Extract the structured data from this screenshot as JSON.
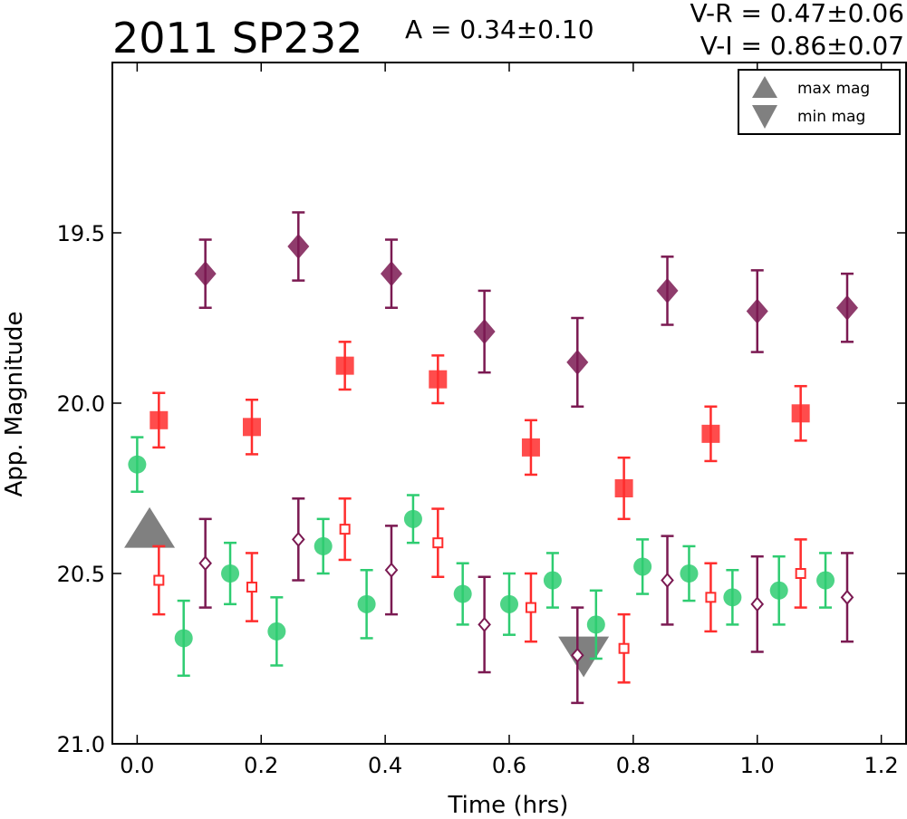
{
  "header": {
    "title": "2011 SP232",
    "amplitude": "A  = 0.34±0.10",
    "color_vr": "V-R = 0.47±0.06",
    "color_vi": "V-I  = 0.86±0.07"
  },
  "chart_data": {
    "type": "scatter",
    "xlabel": "Time (hrs)",
    "ylabel": "App. Magnitude",
    "xlim": [
      -0.04,
      1.24
    ],
    "ylim": [
      21.0,
      19.0
    ],
    "y_inverted": true,
    "x_ticks": [
      "0.0",
      "0.2",
      "0.4",
      "0.6",
      "0.8",
      "1.0",
      "1.2"
    ],
    "y_ticks": [
      "19.5",
      "20.0",
      "20.5",
      "21.0"
    ],
    "x_tick_values": [
      0.0,
      0.2,
      0.4,
      0.6,
      0.8,
      1.0,
      1.2
    ],
    "y_tick_values": [
      19.5,
      20.0,
      20.5,
      21.0
    ],
    "legend_position": "top-right",
    "legend": [
      {
        "label": "max mag",
        "marker": "triangle-up",
        "color": "#808080"
      },
      {
        "label": "min mag",
        "marker": "triangle-down",
        "color": "#808080"
      }
    ],
    "markers": [
      {
        "label": "max mag",
        "x": 0.02,
        "y": 20.38,
        "color": "#808080",
        "shape": "triangle-up"
      },
      {
        "label": "min mag",
        "x": 0.72,
        "y": 20.73,
        "color": "#808080",
        "shape": "triangle-down"
      }
    ],
    "series": [
      {
        "color": "#2ecc71",
        "marker": "circle",
        "filled": true,
        "points": [
          {
            "x": 0.0,
            "y": 20.18,
            "err": 0.08
          },
          {
            "x": 0.075,
            "y": 20.69,
            "err": 0.11
          },
          {
            "x": 0.15,
            "y": 20.5,
            "err": 0.09
          },
          {
            "x": 0.225,
            "y": 20.67,
            "err": 0.1
          },
          {
            "x": 0.3,
            "y": 20.42,
            "err": 0.08
          },
          {
            "x": 0.37,
            "y": 20.59,
            "err": 0.1
          },
          {
            "x": 0.445,
            "y": 20.34,
            "err": 0.07
          },
          {
            "x": 0.525,
            "y": 20.56,
            "err": 0.09
          },
          {
            "x": 0.6,
            "y": 20.59,
            "err": 0.09
          },
          {
            "x": 0.67,
            "y": 20.52,
            "err": 0.08
          },
          {
            "x": 0.74,
            "y": 20.65,
            "err": 0.1
          },
          {
            "x": 0.815,
            "y": 20.48,
            "err": 0.08
          },
          {
            "x": 0.89,
            "y": 20.5,
            "err": 0.08
          },
          {
            "x": 0.96,
            "y": 20.57,
            "err": 0.08
          },
          {
            "x": 1.035,
            "y": 20.55,
            "err": 0.1
          },
          {
            "x": 1.11,
            "y": 20.52,
            "err": 0.08
          }
        ]
      },
      {
        "color": "#ff2d2d",
        "marker": "square",
        "filled": true,
        "points": [
          {
            "x": 0.035,
            "y": 20.05,
            "err": 0.08
          },
          {
            "x": 0.185,
            "y": 20.07,
            "err": 0.08
          },
          {
            "x": 0.335,
            "y": 19.89,
            "err": 0.07
          },
          {
            "x": 0.485,
            "y": 19.93,
            "err": 0.07
          },
          {
            "x": 0.635,
            "y": 20.13,
            "err": 0.08
          },
          {
            "x": 0.785,
            "y": 20.25,
            "err": 0.09
          },
          {
            "x": 0.925,
            "y": 20.09,
            "err": 0.08
          },
          {
            "x": 1.07,
            "y": 20.03,
            "err": 0.08
          }
        ]
      },
      {
        "color": "#ff2d2d",
        "marker": "square",
        "filled": false,
        "points": [
          {
            "x": 0.035,
            "y": 20.52,
            "err": 0.1
          },
          {
            "x": 0.185,
            "y": 20.54,
            "err": 0.1
          },
          {
            "x": 0.335,
            "y": 20.37,
            "err": 0.09
          },
          {
            "x": 0.485,
            "y": 20.41,
            "err": 0.1
          },
          {
            "x": 0.635,
            "y": 20.6,
            "err": 0.1
          },
          {
            "x": 0.785,
            "y": 20.72,
            "err": 0.1
          },
          {
            "x": 0.925,
            "y": 20.57,
            "err": 0.1
          },
          {
            "x": 1.07,
            "y": 20.5,
            "err": 0.1
          }
        ]
      },
      {
        "color": "#7b1a52",
        "marker": "diamond",
        "filled": true,
        "points": [
          {
            "x": 0.11,
            "y": 19.62,
            "err": 0.1
          },
          {
            "x": 0.26,
            "y": 19.54,
            "err": 0.1
          },
          {
            "x": 0.41,
            "y": 19.62,
            "err": 0.1
          },
          {
            "x": 0.56,
            "y": 19.79,
            "err": 0.12
          },
          {
            "x": 0.71,
            "y": 19.88,
            "err": 0.13
          },
          {
            "x": 0.855,
            "y": 19.67,
            "err": 0.1
          },
          {
            "x": 1.0,
            "y": 19.73,
            "err": 0.12
          },
          {
            "x": 1.145,
            "y": 19.72,
            "err": 0.1
          }
        ]
      },
      {
        "color": "#7b1a52",
        "marker": "diamond",
        "filled": false,
        "points": [
          {
            "x": 0.11,
            "y": 20.47,
            "err": 0.13
          },
          {
            "x": 0.26,
            "y": 20.4,
            "err": 0.12
          },
          {
            "x": 0.41,
            "y": 20.49,
            "err": 0.13
          },
          {
            "x": 0.56,
            "y": 20.65,
            "err": 0.14
          },
          {
            "x": 0.71,
            "y": 20.74,
            "err": 0.14
          },
          {
            "x": 0.855,
            "y": 20.52,
            "err": 0.13
          },
          {
            "x": 1.0,
            "y": 20.59,
            "err": 0.14
          },
          {
            "x": 1.145,
            "y": 20.57,
            "err": 0.13
          }
        ]
      }
    ]
  }
}
